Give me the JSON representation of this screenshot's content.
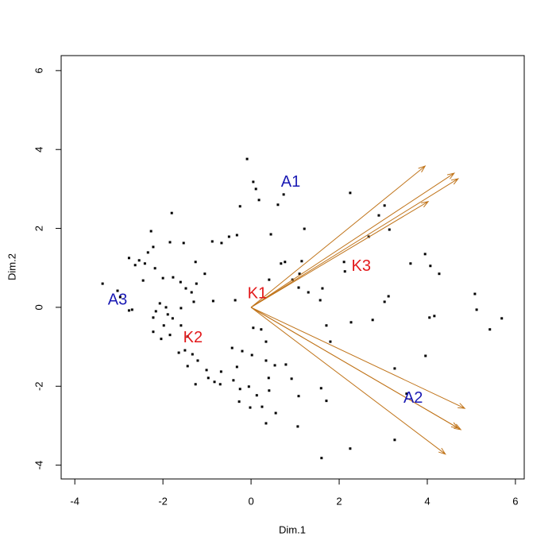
{
  "chart_data": {
    "type": "scatter",
    "x_label": "Dim.1",
    "y_label": "Dim.2",
    "xlim": [
      -4.31,
      6.2
    ],
    "ylim": [
      -4.35,
      6.38
    ],
    "xticks": [
      -4,
      -2,
      0,
      2,
      4,
      6
    ],
    "yticks": [
      -4,
      -2,
      0,
      2,
      4,
      6
    ],
    "point_color": "#000000",
    "x": [
      -0.09,
      0.05,
      0.11,
      0.18,
      0.61,
      0.74,
      -0.25,
      -1.8,
      -2.27,
      1.21,
      0.45,
      -0.32,
      -0.5,
      -0.88,
      -0.67,
      -1.53,
      -1.84,
      -2.22,
      -2.77,
      -2.54,
      -2.34,
      -2.41,
      -2.18,
      -1.26,
      -1.05,
      -1.77,
      -2.0,
      -2.45,
      -3.37,
      -3.03,
      -1.6,
      -1.48,
      -1.35,
      -1.24,
      -0.86,
      -1.3,
      -0.36,
      0.41,
      0.68,
      0.77,
      1.15,
      0.94,
      1.08,
      1.1,
      1.3,
      1.57,
      1.62,
      0.34,
      0.05,
      0.23,
      1.71,
      2.27,
      2.76,
      1.8,
      2.25,
      3.03,
      2.9,
      3.14,
      2.67,
      2.11,
      2.13,
      3.62,
      3.95,
      4.27,
      4.07,
      5.08,
      5.12,
      5.69,
      5.42,
      3.12,
      3.03,
      4.16,
      4.05,
      3.96,
      3.26,
      3.53,
      -2.07,
      -1.93,
      -2.16,
      -1.89,
      -1.78,
      -1.59,
      -2.77,
      -2.22,
      -1.98,
      -1.84,
      -2.04,
      -2.22,
      -1.59,
      -1.44,
      -1.5,
      -1.64,
      -1.33,
      -1.21,
      -1.44,
      -1.01,
      -0.97,
      -0.68,
      -1.26,
      -0.83,
      -0.32,
      -0.4,
      -0.7,
      -0.25,
      -0.05,
      -0.43,
      -0.2,
      0.02,
      0.34,
      0.54,
      0.79,
      0.4,
      0.13,
      0.41,
      0.92,
      -0.27,
      -0.02,
      0.25,
      0.56,
      1.08,
      1.59,
      1.71,
      1.06,
      0.34,
      2.25,
      3.26,
      1.6,
      -2.97,
      -2.7,
      -2.63
    ],
    "values": [
      3.76,
      3.18,
      3.0,
      2.72,
      2.6,
      2.86,
      2.56,
      2.39,
      1.93,
      1.99,
      1.85,
      1.83,
      1.79,
      1.67,
      1.63,
      1.63,
      1.65,
      1.53,
      1.25,
      1.19,
      1.39,
      1.11,
      0.99,
      1.15,
      0.85,
      0.76,
      0.74,
      0.68,
      0.6,
      0.42,
      0.64,
      0.48,
      0.38,
      0.6,
      0.16,
      0.14,
      0.18,
      0.7,
      1.11,
      1.15,
      1.17,
      0.7,
      0.5,
      0.85,
      0.38,
      0.18,
      0.48,
      -0.87,
      -0.52,
      -0.56,
      -0.46,
      -0.38,
      -0.32,
      -0.87,
      2.9,
      2.58,
      2.33,
      1.97,
      1.79,
      1.15,
      0.91,
      1.11,
      1.35,
      0.85,
      1.05,
      0.34,
      -0.06,
      -0.28,
      -0.56,
      0.28,
      0.14,
      -0.22,
      -0.26,
      -1.23,
      -1.55,
      -2.19,
      0.1,
      0.0,
      -0.1,
      -0.18,
      -0.28,
      -0.02,
      -0.08,
      -0.26,
      -0.46,
      -0.7,
      -0.8,
      -0.62,
      -0.46,
      -0.74,
      -1.09,
      -1.15,
      -1.19,
      -1.35,
      -1.49,
      -1.59,
      -1.79,
      -1.63,
      -1.95,
      -1.89,
      -1.51,
      -1.85,
      -1.95,
      -2.07,
      -2.01,
      -1.03,
      -1.11,
      -1.21,
      -1.35,
      -1.47,
      -1.45,
      -1.79,
      -2.23,
      -2.11,
      -1.81,
      -2.39,
      -2.54,
      -2.52,
      -2.68,
      -2.25,
      -2.05,
      -2.37,
      -3.02,
      -2.94,
      -3.58,
      -3.36,
      -3.82,
      0.26,
      -0.06,
      1.07
    ],
    "arrows": {
      "color": "#c0741a",
      "x": [
        3.95,
        4.61,
        4.7,
        4.02,
        4.85,
        4.76,
        4.7,
        4.41
      ],
      "y": [
        3.58,
        3.4,
        3.26,
        2.68,
        -2.56,
        -3.1,
        -3.06,
        -3.72
      ]
    },
    "annotations": [
      {
        "text": "A1",
        "x": 0.9,
        "y": 3.16,
        "color": "#1a1ab4"
      },
      {
        "text": "A2",
        "x": 3.68,
        "y": -2.31,
        "color": "#1a1ab4"
      },
      {
        "text": "A3",
        "x": -3.03,
        "y": 0.18,
        "color": "#1a1ab4"
      },
      {
        "text": "K1",
        "x": 0.14,
        "y": 0.34,
        "color": "#e31a1c"
      },
      {
        "text": "K2",
        "x": -1.32,
        "y": -0.78,
        "color": "#e31a1c"
      },
      {
        "text": "K3",
        "x": 2.5,
        "y": 1.03,
        "color": "#e31a1c"
      }
    ]
  }
}
